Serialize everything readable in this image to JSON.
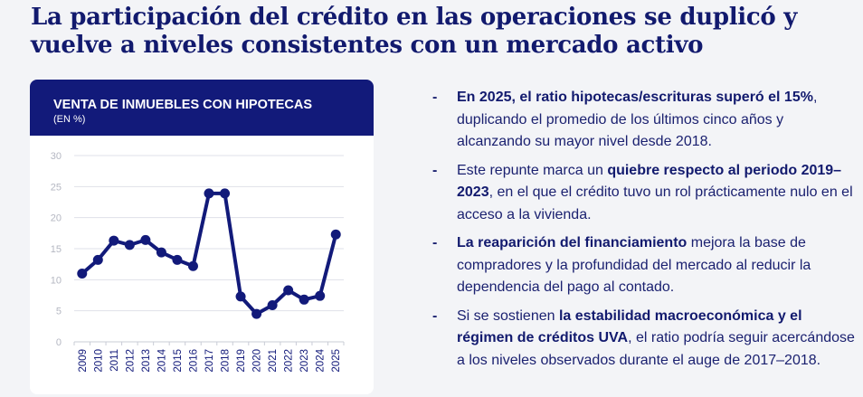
{
  "title": "La participación del crédito en las operaciones se duplicó y vuelve a niveles consistentes con un mercado activo",
  "card": {
    "title": "VENTA DE INMUEBLES CON HIPOTECAS",
    "subtitle": "(EN %)"
  },
  "chart_data": {
    "type": "line",
    "title": "VENTA DE INMUEBLES CON HIPOTECAS",
    "ylabel": "(EN %)",
    "xlabel": "",
    "categories": [
      "2009",
      "2010",
      "2011",
      "2012",
      "2013",
      "2014",
      "2015",
      "2016",
      "2017",
      "2018",
      "2019",
      "2020",
      "2021",
      "2022",
      "2023",
      "2024",
      "2025"
    ],
    "values": [
      11.0,
      13.2,
      16.3,
      15.6,
      16.4,
      14.4,
      13.2,
      12.2,
      23.9,
      23.9,
      7.3,
      4.5,
      5.9,
      8.3,
      6.8,
      7.4,
      17.3
    ],
    "ylim": [
      0,
      30
    ],
    "yticks": [
      "0",
      "5",
      "10",
      "15",
      "20",
      "25",
      "30"
    ],
    "grid": true,
    "color": "#121a7a"
  },
  "bullets": [
    {
      "bold": "En 2025, el ratio hipotecas/escrituras superó el 15%",
      "rest": ", duplicando el promedio de los últimos cinco años y alcanzando su mayor nivel desde 2018."
    },
    {
      "pre": "Este repunte marca un ",
      "bold": "quiebre respecto al periodo 2019–2023",
      "rest": ", en el que el crédito tuvo un rol prácticamente nulo en el acceso a la vivienda."
    },
    {
      "bold": "La reaparición del financiamiento",
      "rest": " mejora la base de compradores y la profundidad del mercado al reducir la dependencia del pago al contado."
    },
    {
      "pre": "Si se sostienen ",
      "bold": "la estabilidad macroeconómica y el régimen de créditos UVA",
      "rest": ", el ratio podría seguir acercándose a los niveles observados durante el auge de 2017–2018."
    }
  ],
  "bullet_marker": "-"
}
